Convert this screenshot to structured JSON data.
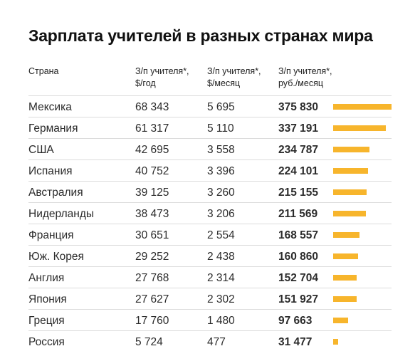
{
  "title": "Зарплата учителей в разных странах мира",
  "headers": {
    "country": "Страна",
    "year_line1": "З/п учителя*,",
    "year_line2": "$/год",
    "month_line1": "З/п учителя*,",
    "month_line2": "$/месяц",
    "rub_line1": "З/п учителя*,",
    "rub_line2": "руб./месяц"
  },
  "colors": {
    "bar": "#f7b52c",
    "divider": "#dcdcdc"
  },
  "chart_data": {
    "type": "table",
    "title": "Зарплата учителей в разных странах мира",
    "columns": [
      "Страна",
      "З/п учителя*, $/год",
      "З/п учителя*, $/месяц",
      "З/п учителя*, руб./месяц"
    ],
    "bar_column": "З/п учителя*, руб./месяц",
    "rows": [
      {
        "country": "Мексика",
        "usd_year": "68 343",
        "usd_month": "5 695",
        "rub_month": "375 830",
        "value": 375830
      },
      {
        "country": "Германия",
        "usd_year": "61 317",
        "usd_month": "5 110",
        "rub_month": "337 191",
        "value": 337191
      },
      {
        "country": "США",
        "usd_year": "42 695",
        "usd_month": "3 558",
        "rub_month": "234 787",
        "value": 234787
      },
      {
        "country": "Испания",
        "usd_year": "40 752",
        "usd_month": "3 396",
        "rub_month": "224 101",
        "value": 224101
      },
      {
        "country": "Австралия",
        "usd_year": "39 125",
        "usd_month": "3 260",
        "rub_month": "215 155",
        "value": 215155
      },
      {
        "country": "Нидерланды",
        "usd_year": "38 473",
        "usd_month": "3 206",
        "rub_month": "211 569",
        "value": 211569
      },
      {
        "country": "Франция",
        "usd_year": "30 651",
        "usd_month": "2 554",
        "rub_month": "168 557",
        "value": 168557
      },
      {
        "country": "Юж. Корея",
        "usd_year": "29 252",
        "usd_month": "2 438",
        "rub_month": "160 860",
        "value": 160860
      },
      {
        "country": "Англия",
        "usd_year": "27 768",
        "usd_month": "2 314",
        "rub_month": "152 704",
        "value": 152704
      },
      {
        "country": "Япония",
        "usd_year": "27 627",
        "usd_month": "2 302",
        "rub_month": "151 927",
        "value": 151927
      },
      {
        "country": "Греция",
        "usd_year": "17 760",
        "usd_month": "1 480",
        "rub_month": "97 663",
        "value": 97663
      },
      {
        "country": "Россия",
        "usd_year": "5 724",
        "usd_month": "477",
        "rub_month": "31 477",
        "value": 31477
      }
    ]
  }
}
